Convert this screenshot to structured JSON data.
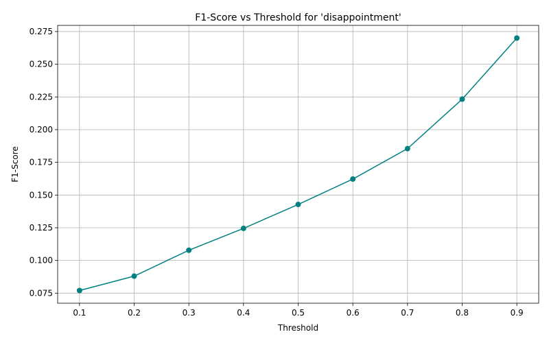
{
  "chart_data": {
    "type": "line",
    "title": "F1-Score vs Threshold for 'disappointment'",
    "xlabel": "Threshold",
    "ylabel": "F1-Score",
    "x": [
      0.1,
      0.2,
      0.3,
      0.4,
      0.5,
      0.6,
      0.7,
      0.8,
      0.9
    ],
    "series": [
      {
        "values": [
          0.077,
          0.088,
          0.1078,
          0.1245,
          0.1428,
          0.1622,
          0.1855,
          0.2233,
          0.27
        ],
        "color": "#008080",
        "marker": "circle"
      }
    ],
    "xlim": [
      0.06,
      0.94
    ],
    "ylim": [
      0.0673,
      0.2797
    ],
    "xticks": [
      0.1,
      0.2,
      0.3,
      0.4,
      0.5,
      0.6,
      0.7,
      0.8,
      0.9
    ],
    "xtick_labels": [
      "0.1",
      "0.2",
      "0.3",
      "0.4",
      "0.5",
      "0.6",
      "0.7",
      "0.8",
      "0.9"
    ],
    "yticks": [
      0.075,
      0.1,
      0.125,
      0.15,
      0.175,
      0.2,
      0.225,
      0.25,
      0.275
    ],
    "ytick_labels": [
      "0.075",
      "0.100",
      "0.125",
      "0.150",
      "0.175",
      "0.200",
      "0.225",
      "0.250",
      "0.275"
    ],
    "grid": true,
    "legend": false
  }
}
